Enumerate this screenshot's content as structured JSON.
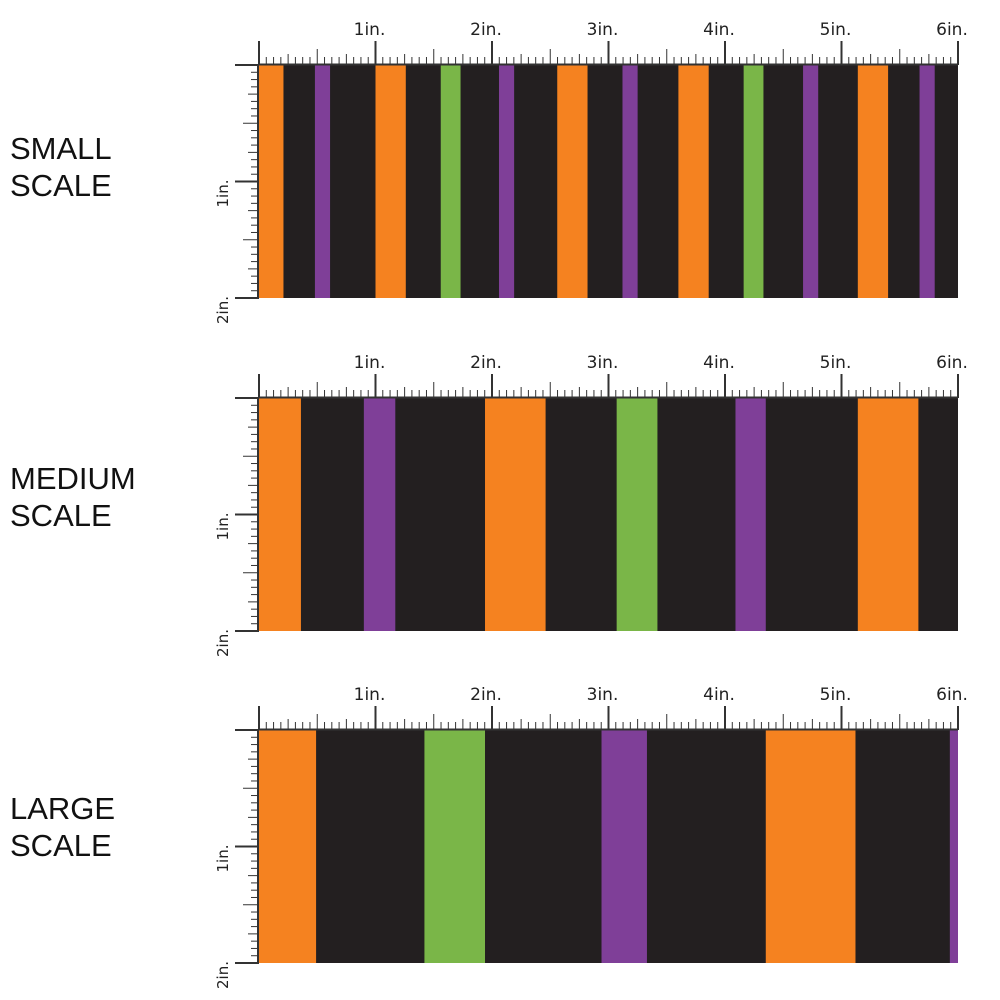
{
  "colors": {
    "background": "#231f20",
    "orange": "#f58220",
    "purple": "#7f3f98",
    "green": "#7ab648",
    "ruler": "#333333"
  },
  "ruler": {
    "horizontal_labels": [
      "1in.",
      "2in.",
      "3in.",
      "4in.",
      "5in.",
      "6in."
    ],
    "vertical_labels": [
      "1in.",
      "2in."
    ]
  },
  "panels": [
    {
      "id": "small",
      "label_lines": [
        "SMALL",
        "SCALE"
      ],
      "stripes": [
        {
          "start": 0.0,
          "end": 0.21,
          "color": "orange"
        },
        {
          "start": 0.48,
          "end": 0.61,
          "color": "purple"
        },
        {
          "start": 1.0,
          "end": 1.26,
          "color": "orange"
        },
        {
          "start": 1.56,
          "end": 1.73,
          "color": "green"
        },
        {
          "start": 2.06,
          "end": 2.19,
          "color": "purple"
        },
        {
          "start": 2.56,
          "end": 2.82,
          "color": "orange"
        },
        {
          "start": 3.12,
          "end": 3.25,
          "color": "purple"
        },
        {
          "start": 3.6,
          "end": 3.86,
          "color": "orange"
        },
        {
          "start": 4.16,
          "end": 4.33,
          "color": "green"
        },
        {
          "start": 4.67,
          "end": 4.8,
          "color": "purple"
        },
        {
          "start": 5.14,
          "end": 5.4,
          "color": "orange"
        },
        {
          "start": 5.67,
          "end": 5.8,
          "color": "purple"
        }
      ]
    },
    {
      "id": "medium",
      "label_lines": [
        "MEDIUM",
        "SCALE"
      ],
      "stripes": [
        {
          "start": 0.0,
          "end": 0.36,
          "color": "orange"
        },
        {
          "start": 0.9,
          "end": 1.17,
          "color": "purple"
        },
        {
          "start": 1.94,
          "end": 2.46,
          "color": "orange"
        },
        {
          "start": 3.07,
          "end": 3.42,
          "color": "green"
        },
        {
          "start": 4.09,
          "end": 4.35,
          "color": "purple"
        },
        {
          "start": 5.14,
          "end": 5.66,
          "color": "orange"
        }
      ]
    },
    {
      "id": "large",
      "label_lines": [
        "LARGE",
        "SCALE"
      ],
      "stripes": [
        {
          "start": 0.0,
          "end": 0.49,
          "color": "orange"
        },
        {
          "start": 1.42,
          "end": 1.94,
          "color": "green"
        },
        {
          "start": 2.94,
          "end": 3.33,
          "color": "purple"
        },
        {
          "start": 4.35,
          "end": 5.12,
          "color": "orange"
        },
        {
          "start": 5.93,
          "end": 6.0,
          "color": "purple"
        }
      ]
    }
  ]
}
